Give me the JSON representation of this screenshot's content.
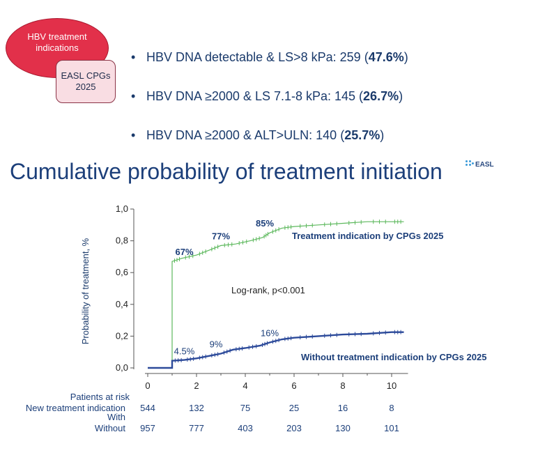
{
  "badges": {
    "primary": "HBV treatment indications",
    "secondary": "EASL CPGs 2025"
  },
  "bullets": [
    {
      "prefix": "HBV DNA detectable & LS>8 kPa: 259 (",
      "bold": "47.6%",
      "suffix": ")"
    },
    {
      "prefix": "HBV DNA ≥2000 & LS 7.1-8 kPa: 145 (",
      "bold": "26.7%",
      "suffix": ")"
    },
    {
      "prefix": "HBV DNA ≥2000 & ALT>ULN: 140 (",
      "bold": "25.7%",
      "suffix": ")"
    }
  ],
  "bullet_glyph": "•",
  "heading": "Cumulative probability of treatment initiation",
  "logo_text": "EASL",
  "chart_data": {
    "type": "line",
    "ylabel": "Probability of treatment, %",
    "xlim": [
      0,
      10.5
    ],
    "ylim": [
      0,
      1.0
    ],
    "x_ticks": [
      "0",
      "2",
      "4",
      "6",
      "8",
      "10"
    ],
    "y_ticks": [
      "0,0",
      "0,2",
      "0,4",
      "0,6",
      "0,8",
      "1,0"
    ],
    "annotation": "Log-rank, p<0.001",
    "series": [
      {
        "name": "Treatment indication by CPGs 2025",
        "color": "#5cb85c",
        "label_color": "#1c3f7a",
        "points": [
          [
            0,
            0
          ],
          [
            1,
            0
          ],
          [
            1,
            0.67
          ],
          [
            1.4,
            0.69
          ],
          [
            2,
            0.71
          ],
          [
            2.5,
            0.74
          ],
          [
            3,
            0.77
          ],
          [
            3.6,
            0.78
          ],
          [
            4.2,
            0.8
          ],
          [
            4.7,
            0.82
          ],
          [
            5,
            0.85
          ],
          [
            5.5,
            0.88
          ],
          [
            6,
            0.89
          ],
          [
            7,
            0.9
          ],
          [
            8,
            0.91
          ],
          [
            9,
            0.92
          ],
          [
            10,
            0.92
          ],
          [
            10.5,
            0.92
          ]
        ],
        "point_labels": [
          {
            "x": 1.5,
            "y": 0.67,
            "text": "67%"
          },
          {
            "x": 3.0,
            "y": 0.77,
            "text": "77%"
          },
          {
            "x": 4.8,
            "y": 0.85,
            "text": "85%"
          }
        ]
      },
      {
        "name": "Without treatment indication by CPGs 2025",
        "color": "#2c4a9a",
        "label_color": "#1c3f7a",
        "points": [
          [
            0,
            0
          ],
          [
            1,
            0
          ],
          [
            1,
            0.045
          ],
          [
            1.5,
            0.05
          ],
          [
            2,
            0.06
          ],
          [
            2.5,
            0.075
          ],
          [
            3,
            0.09
          ],
          [
            3.5,
            0.115
          ],
          [
            4,
            0.125
          ],
          [
            4.6,
            0.14
          ],
          [
            5,
            0.16
          ],
          [
            5.5,
            0.18
          ],
          [
            6,
            0.19
          ],
          [
            7,
            0.2
          ],
          [
            8,
            0.21
          ],
          [
            9,
            0.215
          ],
          [
            10,
            0.225
          ],
          [
            10.5,
            0.225
          ]
        ],
        "point_labels": [
          {
            "x": 1.5,
            "y": 0.045,
            "text": "4.5%"
          },
          {
            "x": 2.8,
            "y": 0.09,
            "text": "9%"
          },
          {
            "x": 5.0,
            "y": 0.16,
            "text": "16%"
          }
        ]
      }
    ],
    "risk_table": {
      "title": "Patients at risk",
      "rows": [
        {
          "label": "New treatment indication",
          "values": [
            "544",
            "132",
            "75",
            "25",
            "16",
            "8"
          ]
        },
        {
          "label": "With",
          "values": []
        },
        {
          "label": "Without",
          "values": [
            "957",
            "777",
            "403",
            "203",
            "130",
            "101"
          ]
        }
      ]
    }
  }
}
